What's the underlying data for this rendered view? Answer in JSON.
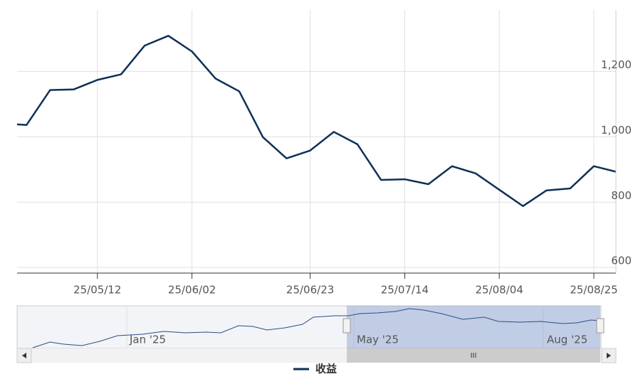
{
  "chart_data": {
    "type": "line",
    "categories": [
      null,
      null,
      null,
      null,
      "25/05/12",
      null,
      null,
      null,
      "25/06/02",
      null,
      null,
      null,
      null,
      "25/06/23",
      null,
      null,
      null,
      "25/07/14",
      null,
      null,
      null,
      "25/08/04",
      null,
      null,
      null,
      "25/08/25",
      null
    ],
    "series": [
      {
        "name": "收益",
        "color": "#0e3057",
        "values": [
          1041,
          1036,
          1143,
          1145,
          1174,
          1191,
          1279,
          1309,
          1261,
          1178,
          1139,
          999,
          934,
          958,
          1015,
          977,
          868,
          870,
          855,
          910,
          888,
          838,
          788,
          836,
          842,
          910,
          892
        ]
      }
    ],
    "ylim": [
      583,
      1388
    ],
    "yticks": [
      600,
      800,
      {
        "value": 1000,
        "label": "1,000"
      },
      {
        "value": 1200,
        "label": "1,200"
      }
    ],
    "grid": true,
    "navigator_labels": [
      "Jan '25",
      "May '25",
      "Aug '25"
    ],
    "scrollbar_label": "III"
  }
}
